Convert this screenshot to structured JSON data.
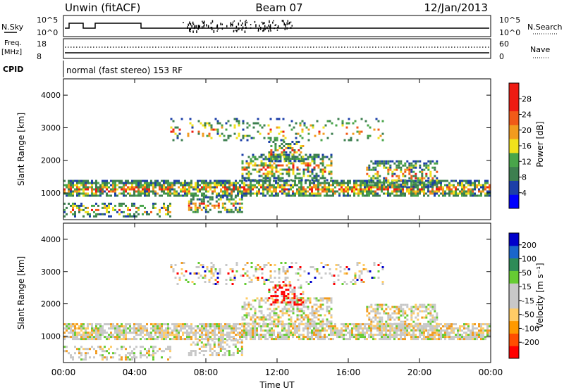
{
  "header": {
    "station": "Unwin (fitACF)",
    "beam": "Beam 07",
    "date": "12/Jan/2013"
  },
  "status": {
    "nsky_label": "N.Sky",
    "nsearch_label": "N.Search",
    "freq_label": "Freq.",
    "freq_unit": "[MHz]",
    "nave_label": "Nave",
    "cpid_label": "CPID",
    "cpid_value": "normal (fast stereo) 153 RF",
    "nsky_ticks": [
      "10^5",
      "10^0"
    ],
    "nsearch_ticks": [
      "10^5",
      "10^0"
    ],
    "freq_ticks": [
      "18",
      "8"
    ],
    "nave_ticks": [
      "60",
      "0"
    ]
  },
  "colors": {
    "power_scale": [
      "#0000ff",
      "#1c3fa8",
      "#3d7f4f",
      "#49a54a",
      "#f1e21c",
      "#f29b1e",
      "#f15a18",
      "#ee1b12",
      "#ee1b12"
    ],
    "velocity_scale": [
      "#ff0000",
      "#ff4d00",
      "#ff9900",
      "#ffcc66",
      "#c8c8c8",
      "#c8c8c8",
      "#66cc33",
      "#2e8b57",
      "#1a66cc",
      "#0000cc"
    ]
  },
  "chart_data": [
    {
      "type": "heatmap",
      "name": "power",
      "ylabel": "Slant Range [km]",
      "colorbar_label": "Power [dB]",
      "colorbar_ticks": [
        4,
        8,
        12,
        16,
        20,
        24,
        28
      ],
      "colorbar_range": [
        0,
        32
      ],
      "ylim": [
        180,
        4500
      ],
      "yticks": [
        1000,
        2000,
        3000,
        4000
      ],
      "xlim": [
        0,
        24
      ],
      "x_tick_labels": [
        "00:00",
        "04:00",
        "08:00",
        "12:00",
        "16:00",
        "20:00",
        "00:00"
      ]
    },
    {
      "type": "heatmap",
      "name": "velocity",
      "ylabel": "Slant Range [km]",
      "xlabel": "Time UT",
      "colorbar_label": "Velocity [m s⁻¹]",
      "colorbar_ticks": [
        200,
        100,
        50,
        15,
        -15,
        -50,
        -100,
        -200
      ],
      "ylim": [
        180,
        4500
      ],
      "yticks": [
        1000,
        2000,
        3000,
        4000
      ],
      "xlim": [
        0,
        24
      ],
      "x_tick_labels": [
        "00:00",
        "04:00",
        "08:00",
        "12:00",
        "16:00",
        "20:00",
        "00:00"
      ]
    }
  ]
}
